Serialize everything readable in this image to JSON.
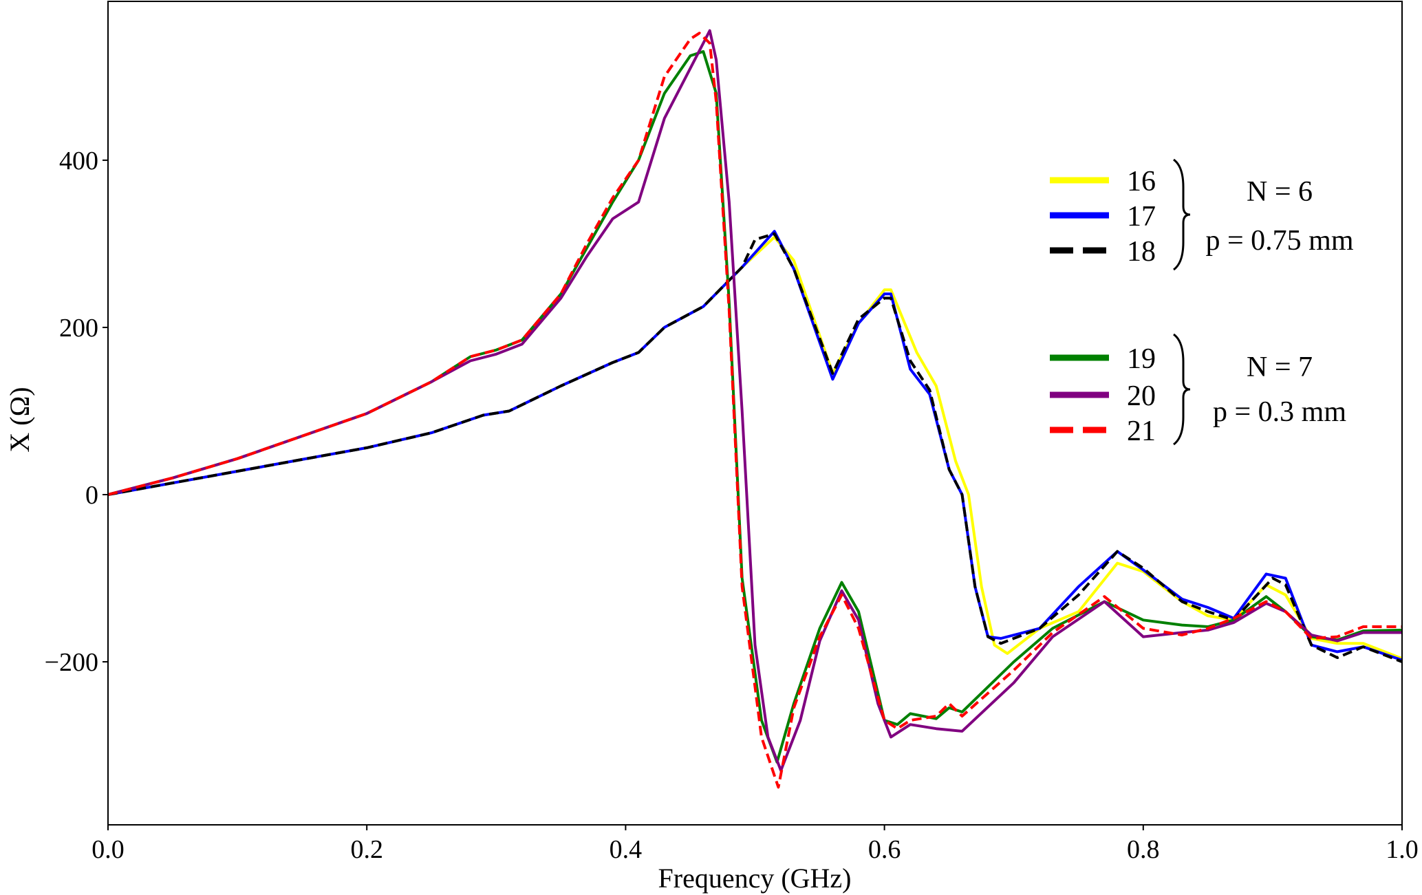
{
  "chart_data": {
    "type": "line",
    "xlabel": "Frequency (GHz)",
    "ylabel": "X (Ω)",
    "xlim": [
      0.0,
      1.0
    ],
    "ylim": [
      -395,
      590
    ],
    "xticks": [
      0.0,
      0.2,
      0.4,
      0.6,
      0.8,
      1.0
    ],
    "xtick_labels": [
      "0.0",
      "0.2",
      "0.4",
      "0.6",
      "0.8",
      "1.0"
    ],
    "yticks": [
      -200,
      0,
      200,
      400
    ],
    "ytick_labels": [
      "−200",
      "0",
      "200",
      "400"
    ],
    "grid": false,
    "legend_position": "right",
    "legend_groups": [
      {
        "labels": [
          "N = 6",
          "p = 0.75 mm"
        ]
      },
      {
        "labels": [
          "N = 7",
          "p = 0.3 mm"
        ]
      }
    ],
    "series": [
      {
        "name": "16",
        "color": "#ffff00",
        "style": "solid",
        "x": [
          0,
          0.05,
          0.1,
          0.15,
          0.2,
          0.25,
          0.29,
          0.31,
          0.35,
          0.39,
          0.41,
          0.43,
          0.46,
          0.49,
          0.515,
          0.53,
          0.56,
          0.58,
          0.6,
          0.605,
          0.625,
          0.64,
          0.655,
          0.665,
          0.675,
          0.685,
          0.695,
          0.72,
          0.75,
          0.78,
          0.8,
          0.83,
          0.85,
          0.87,
          0.895,
          0.91,
          0.93,
          0.95,
          0.97,
          1.0
        ],
        "y": [
          0,
          14,
          28,
          42,
          56,
          74,
          95,
          100,
          130,
          158,
          170,
          200,
          225,
          272,
          308,
          280,
          145,
          205,
          245,
          245,
          170,
          130,
          40,
          0,
          -110,
          -180,
          -190,
          -160,
          -140,
          -82,
          -92,
          -128,
          -145,
          -150,
          -108,
          -120,
          -172,
          -178,
          -178,
          -196
        ]
      },
      {
        "name": "17",
        "color": "#0000ff",
        "style": "solid",
        "x": [
          0,
          0.05,
          0.1,
          0.15,
          0.2,
          0.25,
          0.29,
          0.31,
          0.35,
          0.39,
          0.41,
          0.43,
          0.46,
          0.49,
          0.515,
          0.53,
          0.56,
          0.58,
          0.6,
          0.605,
          0.62,
          0.635,
          0.65,
          0.66,
          0.67,
          0.68,
          0.69,
          0.72,
          0.75,
          0.78,
          0.8,
          0.83,
          0.85,
          0.87,
          0.895,
          0.91,
          0.93,
          0.95,
          0.97,
          1.0
        ],
        "y": [
          0,
          14,
          28,
          42,
          56,
          74,
          95,
          100,
          130,
          158,
          170,
          200,
          225,
          272,
          315,
          270,
          138,
          205,
          240,
          240,
          150,
          120,
          30,
          0,
          -110,
          -170,
          -172,
          -160,
          -110,
          -68,
          -90,
          -125,
          -135,
          -148,
          -95,
          -100,
          -180,
          -188,
          -182,
          -198
        ]
      },
      {
        "name": "18",
        "color": "#000000",
        "style": "dashed",
        "x": [
          0,
          0.05,
          0.1,
          0.15,
          0.2,
          0.25,
          0.29,
          0.31,
          0.35,
          0.39,
          0.41,
          0.43,
          0.46,
          0.49,
          0.5,
          0.515,
          0.53,
          0.56,
          0.58,
          0.6,
          0.605,
          0.62,
          0.635,
          0.65,
          0.66,
          0.67,
          0.68,
          0.69,
          0.72,
          0.75,
          0.78,
          0.8,
          0.83,
          0.85,
          0.87,
          0.9,
          0.91,
          0.93,
          0.95,
          0.97,
          1.0
        ],
        "y": [
          0,
          14,
          28,
          42,
          56,
          74,
          95,
          100,
          130,
          158,
          170,
          200,
          225,
          272,
          305,
          312,
          270,
          145,
          210,
          235,
          235,
          160,
          125,
          30,
          0,
          -110,
          -170,
          -178,
          -160,
          -120,
          -68,
          -88,
          -128,
          -140,
          -150,
          -100,
          -108,
          -180,
          -195,
          -182,
          -200
        ]
      },
      {
        "name": "19",
        "color": "#008000",
        "style": "solid",
        "x": [
          0,
          0.05,
          0.1,
          0.15,
          0.2,
          0.25,
          0.28,
          0.3,
          0.32,
          0.35,
          0.37,
          0.39,
          0.41,
          0.43,
          0.45,
          0.46,
          0.47,
          0.48,
          0.49,
          0.505,
          0.517,
          0.53,
          0.55,
          0.567,
          0.58,
          0.6,
          0.61,
          0.62,
          0.64,
          0.65,
          0.66,
          0.7,
          0.73,
          0.77,
          0.8,
          0.83,
          0.85,
          0.87,
          0.895,
          0.91,
          0.93,
          0.95,
          0.97,
          1.0
        ],
        "y": [
          0,
          20,
          43,
          70,
          97,
          135,
          165,
          173,
          185,
          240,
          295,
          350,
          400,
          480,
          525,
          530,
          480,
          230,
          -100,
          -270,
          -320,
          -250,
          -160,
          -105,
          -140,
          -270,
          -275,
          -262,
          -268,
          -255,
          -260,
          -200,
          -160,
          -128,
          -150,
          -156,
          -158,
          -150,
          -122,
          -140,
          -170,
          -174,
          -163,
          -162
        ]
      },
      {
        "name": "20",
        "color": "#800080",
        "style": "solid",
        "x": [
          0,
          0.05,
          0.1,
          0.15,
          0.2,
          0.25,
          0.28,
          0.3,
          0.32,
          0.35,
          0.37,
          0.39,
          0.41,
          0.43,
          0.45,
          0.465,
          0.47,
          0.48,
          0.49,
          0.5,
          0.51,
          0.52,
          0.535,
          0.55,
          0.567,
          0.58,
          0.595,
          0.605,
          0.62,
          0.64,
          0.66,
          0.7,
          0.73,
          0.77,
          0.8,
          0.83,
          0.85,
          0.87,
          0.895,
          0.91,
          0.93,
          0.95,
          0.97,
          1.0
        ],
        "y": [
          0,
          20,
          43,
          70,
          97,
          135,
          160,
          168,
          180,
          235,
          285,
          330,
          350,
          450,
          510,
          555,
          520,
          350,
          100,
          -180,
          -290,
          -330,
          -270,
          -175,
          -115,
          -150,
          -250,
          -290,
          -275,
          -280,
          -283,
          -225,
          -170,
          -128,
          -170,
          -165,
          -162,
          -153,
          -130,
          -140,
          -168,
          -175,
          -165,
          -165
        ]
      },
      {
        "name": "21",
        "color": "#ff0000",
        "style": "dashed",
        "x": [
          0,
          0.05,
          0.1,
          0.15,
          0.2,
          0.25,
          0.28,
          0.3,
          0.32,
          0.35,
          0.37,
          0.39,
          0.41,
          0.43,
          0.45,
          0.457,
          0.465,
          0.47,
          0.48,
          0.49,
          0.505,
          0.518,
          0.53,
          0.55,
          0.567,
          0.58,
          0.6,
          0.61,
          0.62,
          0.64,
          0.65,
          0.66,
          0.7,
          0.73,
          0.77,
          0.8,
          0.83,
          0.85,
          0.87,
          0.895,
          0.91,
          0.93,
          0.95,
          0.97,
          1.0
        ],
        "y": [
          0,
          20,
          43,
          70,
          97,
          135,
          165,
          173,
          185,
          240,
          300,
          355,
          400,
          500,
          545,
          552,
          540,
          470,
          220,
          -110,
          -290,
          -350,
          -255,
          -170,
          -120,
          -160,
          -270,
          -280,
          -270,
          -265,
          -250,
          -265,
          -210,
          -165,
          -122,
          -160,
          -168,
          -160,
          -148,
          -128,
          -140,
          -172,
          -170,
          -158,
          -158
        ]
      }
    ]
  }
}
